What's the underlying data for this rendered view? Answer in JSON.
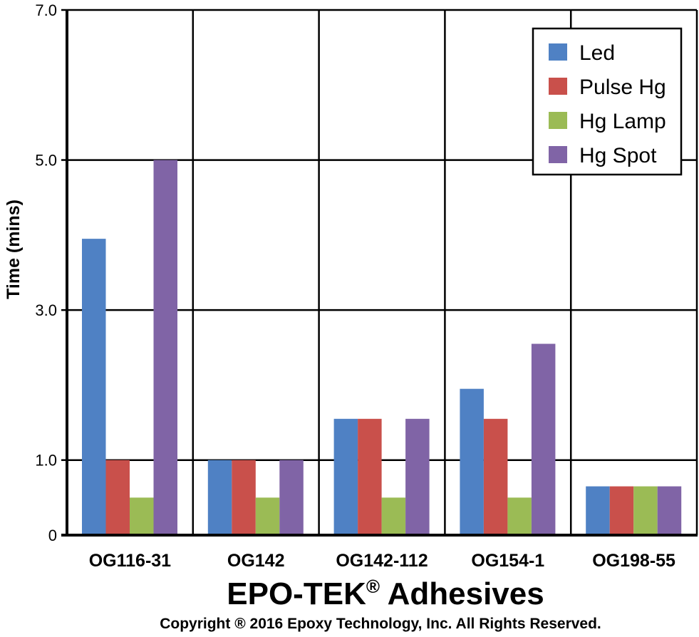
{
  "chart_data": {
    "type": "bar",
    "categories": [
      "OG116-31",
      "OG142",
      "OG142-112",
      "OG154-1",
      "OG198-55"
    ],
    "series": [
      {
        "name": "Led",
        "color": "#4f81c4",
        "values": [
          3.95,
          1.0,
          1.55,
          1.95,
          0.65
        ]
      },
      {
        "name": "Pulse Hg",
        "color": "#c9504b",
        "values": [
          1.0,
          1.0,
          1.55,
          1.55,
          0.65
        ]
      },
      {
        "name": "Hg Lamp",
        "color": "#9bbb55",
        "values": [
          0.5,
          0.5,
          0.5,
          0.5,
          0.65
        ]
      },
      {
        "name": "Hg Spot",
        "color": "#8064a6",
        "values": [
          5.0,
          1.0,
          1.55,
          2.55,
          0.65
        ]
      }
    ],
    "y_ticks": [
      {
        "value": 0,
        "label": "0"
      },
      {
        "value": 1.0,
        "label": "1.0"
      },
      {
        "value": 3.0,
        "label": "3.0"
      },
      {
        "value": 5.0,
        "label": "5.0"
      },
      {
        "value": 7.0,
        "label": "7.0"
      }
    ],
    "ylim": [
      0,
      7.0
    ],
    "ylabel": "Time (mins)",
    "xlabel": "EPO-TEK",
    "xlabel_mark": "®",
    "xlabel_suffix": " Adhesives",
    "legend_position": "top-right",
    "grid": true
  },
  "footer": {
    "copyright": "Copyright ® 2016 Epoxy Technology, Inc. All Rights Reserved."
  }
}
